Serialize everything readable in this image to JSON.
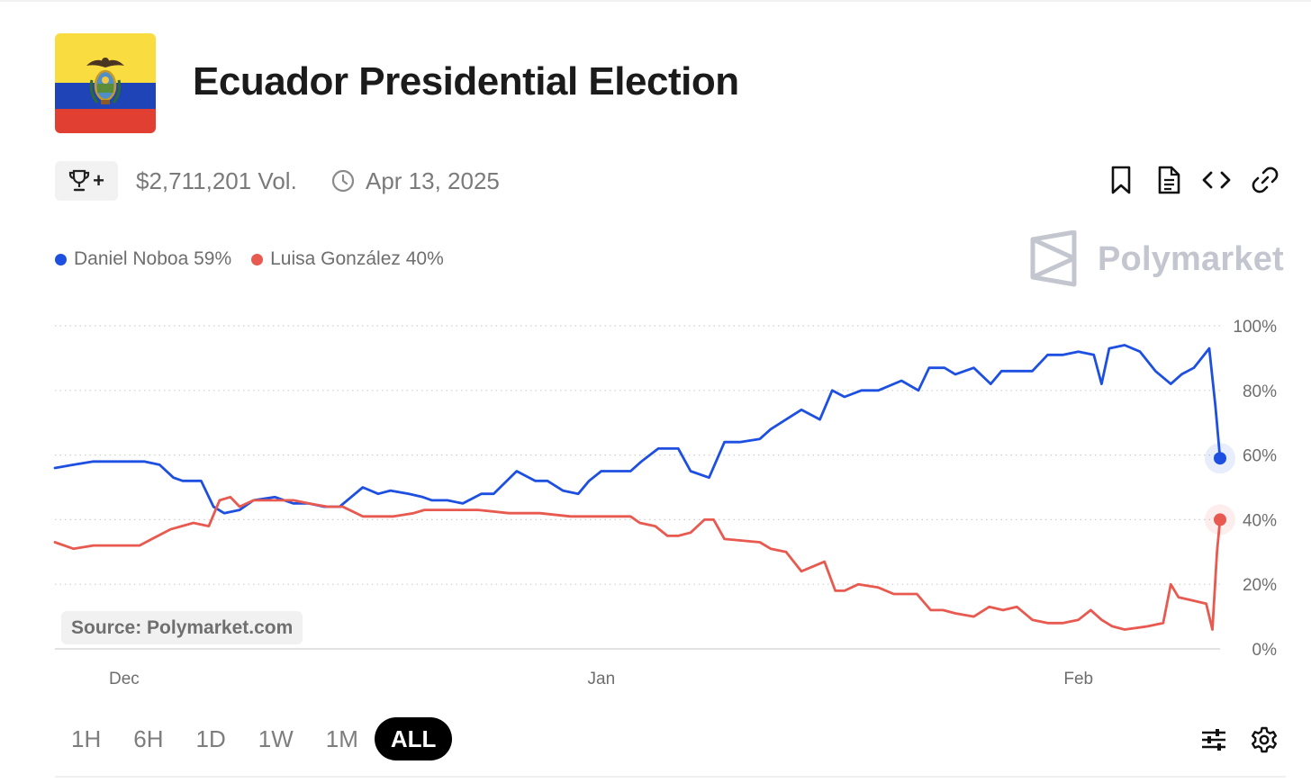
{
  "header": {
    "title": "Ecuador Presidential Election"
  },
  "meta": {
    "volume": "$2,711,201 Vol.",
    "end_date": "Apr 13, 2025",
    "trophy_plus": "+"
  },
  "legend": {
    "items": [
      {
        "label": "Daniel Noboa 59%",
        "color": "#1d4fe0"
      },
      {
        "label": "Luisa González 40%",
        "color": "#e8594f"
      }
    ]
  },
  "brand": {
    "name": "Polymarket"
  },
  "source": "Source: Polymarket.com",
  "ranges": [
    "1H",
    "6H",
    "1D",
    "1W",
    "1M",
    "ALL"
  ],
  "active_range": "ALL",
  "icons": [
    "trophy-icon",
    "clock-icon",
    "bookmark-icon",
    "document-icon",
    "code-icon",
    "link-icon",
    "sliders-icon",
    "gear-icon"
  ],
  "chart_data": {
    "type": "line",
    "ylim": [
      0,
      100
    ],
    "y_ticks": [
      "100%",
      "80%",
      "60%",
      "40%",
      "20%",
      "0%"
    ],
    "y_tick_values": [
      100,
      80,
      60,
      40,
      20,
      0
    ],
    "x_ticks": [
      {
        "label": "Dec",
        "x": 2.0
      },
      {
        "label": "Jan",
        "x": 33.0
      },
      {
        "label": "Feb",
        "x": 64.0
      }
    ],
    "xlim": [
      -2.5,
      73.2
    ],
    "grid": true,
    "series": [
      {
        "name": "Daniel Noboa",
        "color": "#1d4fe0",
        "end_value": 59,
        "points": [
          [
            -2.5,
            56
          ],
          [
            -1.3,
            57
          ],
          [
            0,
            58
          ],
          [
            1.8,
            58
          ],
          [
            3.3,
            58
          ],
          [
            4.3,
            57
          ],
          [
            5.2,
            53
          ],
          [
            5.8,
            52
          ],
          [
            7.0,
            52
          ],
          [
            7.8,
            44
          ],
          [
            8.5,
            42
          ],
          [
            9.5,
            43
          ],
          [
            10.4,
            46
          ],
          [
            11.8,
            47
          ],
          [
            13.0,
            45
          ],
          [
            14.0,
            45
          ],
          [
            15.0,
            44
          ],
          [
            16.0,
            44
          ],
          [
            17.5,
            50
          ],
          [
            18.5,
            48
          ],
          [
            19.3,
            49
          ],
          [
            20.5,
            48
          ],
          [
            21.4,
            47
          ],
          [
            22.0,
            46
          ],
          [
            23.0,
            46
          ],
          [
            24.0,
            45
          ],
          [
            25.2,
            48
          ],
          [
            26.0,
            48
          ],
          [
            27.5,
            55
          ],
          [
            28.7,
            52
          ],
          [
            29.5,
            52
          ],
          [
            30.5,
            49
          ],
          [
            31.5,
            48
          ],
          [
            32.2,
            52
          ],
          [
            33.0,
            55
          ],
          [
            34.9,
            55
          ],
          [
            35.6,
            58
          ],
          [
            36.7,
            62
          ],
          [
            38.0,
            62
          ],
          [
            38.8,
            55
          ],
          [
            40.0,
            53
          ],
          [
            41.0,
            64
          ],
          [
            42.0,
            64
          ],
          [
            43.3,
            65
          ],
          [
            44.0,
            68
          ],
          [
            45.0,
            71
          ],
          [
            46.0,
            74
          ],
          [
            47.2,
            71
          ],
          [
            48.0,
            80
          ],
          [
            48.8,
            78
          ],
          [
            49.9,
            80
          ],
          [
            51.0,
            80
          ],
          [
            52.5,
            83
          ],
          [
            53.6,
            80
          ],
          [
            54.3,
            87
          ],
          [
            55.3,
            87
          ],
          [
            56.0,
            85
          ],
          [
            57.2,
            87
          ],
          [
            58.3,
            82
          ],
          [
            59.0,
            86
          ],
          [
            60.0,
            86
          ],
          [
            61.0,
            86
          ],
          [
            62.0,
            91
          ],
          [
            63.0,
            91
          ],
          [
            64.0,
            92
          ],
          [
            65.0,
            91
          ],
          [
            65.5,
            82
          ],
          [
            66.0,
            93
          ],
          [
            67.0,
            94
          ],
          [
            68.0,
            92
          ],
          [
            69.0,
            86
          ],
          [
            70.0,
            82
          ],
          [
            70.7,
            85
          ],
          [
            71.5,
            87
          ],
          [
            72.5,
            93
          ],
          [
            72.9,
            75
          ],
          [
            73.2,
            59
          ]
        ]
      },
      {
        "name": "Luisa González",
        "color": "#e8594f",
        "end_value": 40,
        "points": [
          [
            -2.5,
            33
          ],
          [
            -1.3,
            31
          ],
          [
            0,
            32
          ],
          [
            1.5,
            32
          ],
          [
            3.0,
            32
          ],
          [
            3.8,
            34
          ],
          [
            5.0,
            37
          ],
          [
            6.5,
            39
          ],
          [
            7.5,
            38
          ],
          [
            8.2,
            46
          ],
          [
            8.9,
            47
          ],
          [
            9.5,
            44
          ],
          [
            10.4,
            46
          ],
          [
            11.8,
            46
          ],
          [
            13.0,
            46
          ],
          [
            14.0,
            45
          ],
          [
            15.2,
            44
          ],
          [
            16.2,
            44
          ],
          [
            17.5,
            41
          ],
          [
            18.5,
            41
          ],
          [
            19.5,
            41
          ],
          [
            20.8,
            42
          ],
          [
            21.5,
            43
          ],
          [
            23.0,
            43
          ],
          [
            25.0,
            43
          ],
          [
            27.0,
            42
          ],
          [
            29.0,
            42
          ],
          [
            31.0,
            41
          ],
          [
            32.5,
            41
          ],
          [
            34.9,
            41
          ],
          [
            35.5,
            39
          ],
          [
            36.5,
            38
          ],
          [
            37.3,
            35
          ],
          [
            38.0,
            35
          ],
          [
            38.8,
            36
          ],
          [
            39.7,
            40
          ],
          [
            40.3,
            40
          ],
          [
            41.0,
            34
          ],
          [
            43.3,
            33
          ],
          [
            44.0,
            31
          ],
          [
            45.0,
            30
          ],
          [
            46.0,
            24
          ],
          [
            47.5,
            27
          ],
          [
            48.2,
            18
          ],
          [
            48.8,
            18
          ],
          [
            49.7,
            20
          ],
          [
            51.0,
            19
          ],
          [
            52.0,
            17
          ],
          [
            53.5,
            17
          ],
          [
            54.4,
            12
          ],
          [
            55.2,
            12
          ],
          [
            56.0,
            11
          ],
          [
            57.2,
            10
          ],
          [
            58.2,
            13
          ],
          [
            59.1,
            12
          ],
          [
            60.0,
            13
          ],
          [
            61.0,
            9
          ],
          [
            62.0,
            8
          ],
          [
            63.0,
            8
          ],
          [
            64.0,
            9
          ],
          [
            64.8,
            12
          ],
          [
            65.5,
            9
          ],
          [
            66.2,
            7
          ],
          [
            67.0,
            6
          ],
          [
            68.5,
            7
          ],
          [
            69.5,
            8
          ],
          [
            70.0,
            20
          ],
          [
            70.5,
            16
          ],
          [
            71.4,
            15
          ],
          [
            72.3,
            14
          ],
          [
            72.7,
            6
          ],
          [
            73.0,
            30
          ],
          [
            73.2,
            40
          ]
        ]
      }
    ]
  }
}
